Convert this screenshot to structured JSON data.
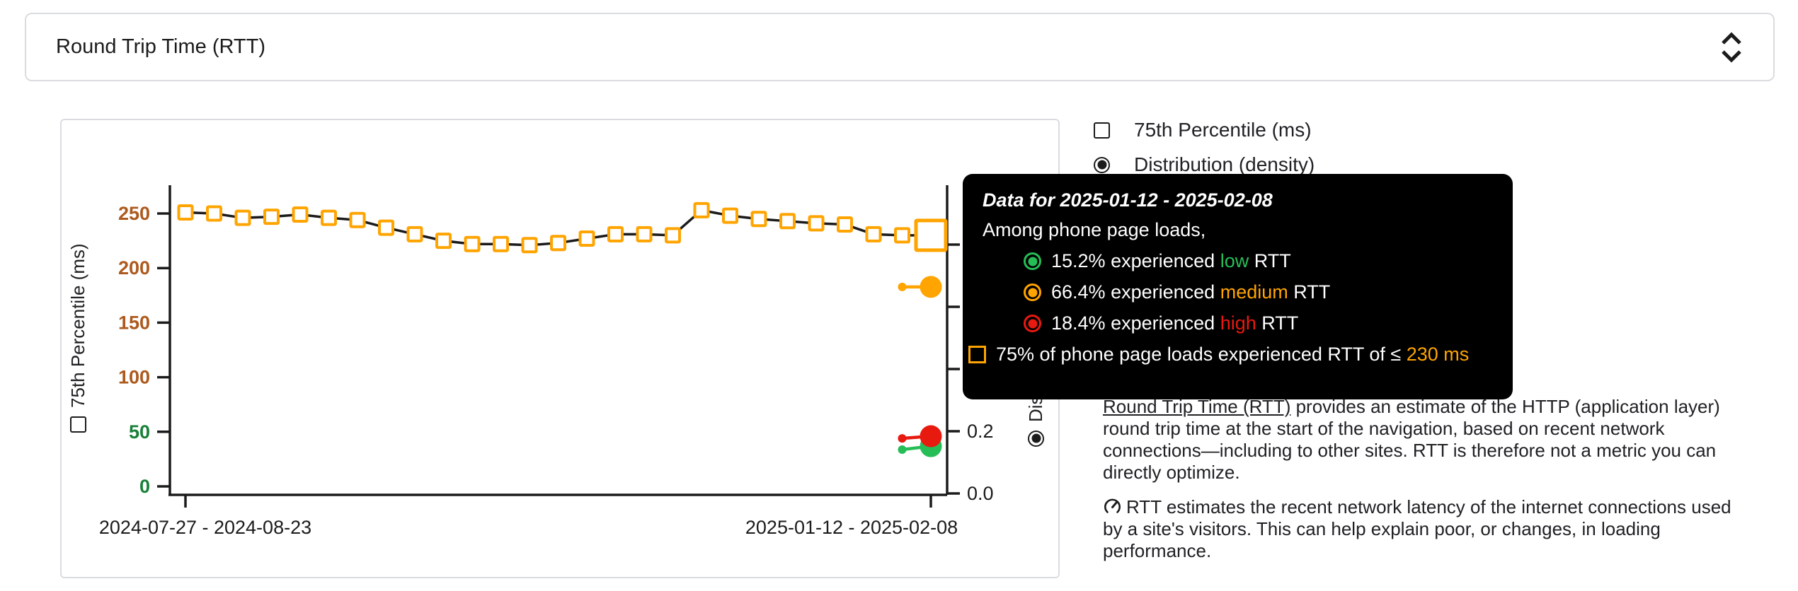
{
  "metric_selector": {
    "value": "Round Trip Time (RTT)"
  },
  "legend": {
    "percentile": {
      "label": "75th Percentile (ms)",
      "checked": false
    },
    "distribution": {
      "label": "Distribution (density)",
      "selected": true
    }
  },
  "colors": {
    "low": "#26bd57",
    "medium": "#ffa400",
    "high": "#e8190f",
    "tick_green": "#188038",
    "tick_brown": "#ad5a1e",
    "axis_black": "#1b1b1b",
    "card_border": "#dadce0"
  },
  "tooltip": {
    "title": "Data for 2025-01-12 - 2025-02-08",
    "subtitle": "Among phone page loads,",
    "rows": [
      {
        "pct": "15.2%",
        "mid": "experienced",
        "level": "low",
        "suffix": "RTT",
        "color_key": "low"
      },
      {
        "pct": "66.4%",
        "mid": "experienced",
        "level": "medium",
        "suffix": "RTT",
        "color_key": "medium"
      },
      {
        "pct": "18.4%",
        "mid": "experienced",
        "level": "high",
        "suffix": "RTT",
        "color_key": "high"
      }
    ],
    "threshold_row": {
      "prefix": "75% of phone page loads experienced RTT of ≤",
      "value": "230 ms",
      "color_key": "medium"
    }
  },
  "chart_data": {
    "type": "line",
    "title": "Round Trip Time (RTT)",
    "x_axis": {
      "tick_labels": [
        "2024-07-27 - 2024-08-23",
        "2025-01-12 - 2025-02-08"
      ],
      "num_points": 27
    },
    "y_axis_left": {
      "label": "75th Percentile (ms)",
      "range": [
        0,
        250
      ],
      "ticks": [
        {
          "label": "0",
          "value": 0,
          "color": "tick_green"
        },
        {
          "label": "50",
          "value": 50,
          "color": "tick_green"
        },
        {
          "label": "100",
          "value": 100,
          "color": "tick_brown"
        },
        {
          "label": "150",
          "value": 150,
          "color": "tick_brown"
        },
        {
          "label": "200",
          "value": 200,
          "color": "tick_brown"
        },
        {
          "label": "250",
          "value": 250,
          "color": "tick_brown"
        }
      ]
    },
    "y_axis_right": {
      "label": "Distribution (density)",
      "range": [
        0,
        1.0
      ],
      "tick_values": [
        0,
        0.2,
        0.4,
        0.6,
        0.8
      ],
      "visible_ticks": [
        {
          "label": "0.0",
          "value": 0
        },
        {
          "label": "0.2",
          "value": 0.2
        }
      ]
    },
    "series": [
      {
        "name": "75th Percentile (ms)",
        "marker": "open-square",
        "color_key": "medium",
        "line_color": "#1b1b1b",
        "values": [
          251,
          250,
          246,
          247,
          249,
          246,
          244,
          237,
          231,
          225,
          222,
          222,
          221,
          223,
          227,
          231,
          231,
          230,
          253,
          248,
          245,
          243,
          241,
          240,
          231,
          230,
          230
        ],
        "latest_value": 230
      }
    ],
    "density_latest_segments": [
      {
        "name": "medium",
        "color_key": "medium",
        "from": 0.664,
        "to": 0.664
      },
      {
        "name": "low",
        "color_key": "low",
        "from": 0.141,
        "to": 0.152
      },
      {
        "name": "high",
        "color_key": "high",
        "from": 0.177,
        "to": 0.184
      }
    ]
  },
  "description": {
    "p1_link": "Round Trip Time (RTT)",
    "p1_rest": " provides an estimate of the HTTP (application layer) round trip time at the start of the navigation, based on recent network connections—including to other sites. RTT is therefore not a metric you can directly optimize.",
    "p2": "RTT estimates the recent network latency of the internet connections used by a site's visitors. This can help explain poor, or changes, in loading performance."
  }
}
